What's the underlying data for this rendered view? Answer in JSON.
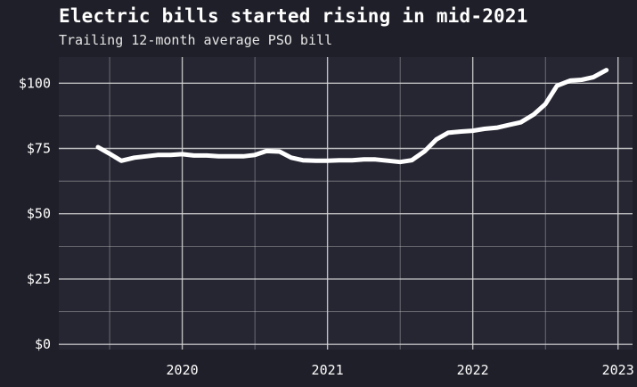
{
  "header": {
    "title": "Electric bills started rising in mid-2021",
    "subtitle": "Trailing 12-month average PSO bill"
  },
  "colors": {
    "background": "#1f1f29",
    "plot_background": "#262633",
    "grid": "#d9d9d9",
    "line": "#ffffff",
    "text": "#ffffff"
  },
  "chart_data": {
    "type": "line",
    "title": "Electric bills started rising in mid-2021",
    "subtitle": "Trailing 12-month average PSO bill",
    "xlabel": "",
    "ylabel": "",
    "x_tick_labels": [
      "2020",
      "2021",
      "2022",
      "2023"
    ],
    "x_tick_values": [
      2020,
      2021,
      2022,
      2023
    ],
    "y_tick_labels": [
      "$0",
      "$25",
      "$50",
      "$75",
      "$100"
    ],
    "y_tick_values": [
      0,
      25,
      50,
      75,
      100
    ],
    "xlim": [
      2019.15,
      2023.1
    ],
    "ylim": [
      -2,
      110
    ],
    "grid": true,
    "series": [
      {
        "x": [
          2019.42,
          2019.5,
          2019.58,
          2019.67,
          2019.75,
          2019.83,
          2019.92,
          2020.0,
          2020.08,
          2020.17,
          2020.25,
          2020.33,
          2020.42,
          2020.5,
          2020.58,
          2020.67,
          2020.75,
          2020.83,
          2020.92,
          2021.0,
          2021.08,
          2021.17,
          2021.25,
          2021.33,
          2021.42,
          2021.5,
          2021.58,
          2021.67,
          2021.75,
          2021.83,
          2021.92,
          2022.0,
          2022.08,
          2022.17,
          2022.25,
          2022.33,
          2022.42,
          2022.5,
          2022.58,
          2022.67,
          2022.75,
          2022.83,
          2022.92
        ],
        "values": [
          75.5,
          73.0,
          70.3,
          71.5,
          72.0,
          72.5,
          72.5,
          72.8,
          72.3,
          72.3,
          72.0,
          72.0,
          72.0,
          72.5,
          74.0,
          73.8,
          71.5,
          70.5,
          70.3,
          70.3,
          70.5,
          70.5,
          70.8,
          70.8,
          70.3,
          69.8,
          70.5,
          74.0,
          78.5,
          81.0,
          81.5,
          81.8,
          82.5,
          83.0,
          84.0,
          85.0,
          88.0,
          92.0,
          99.0,
          101.0,
          101.3,
          102.3,
          105.0
        ]
      }
    ]
  }
}
